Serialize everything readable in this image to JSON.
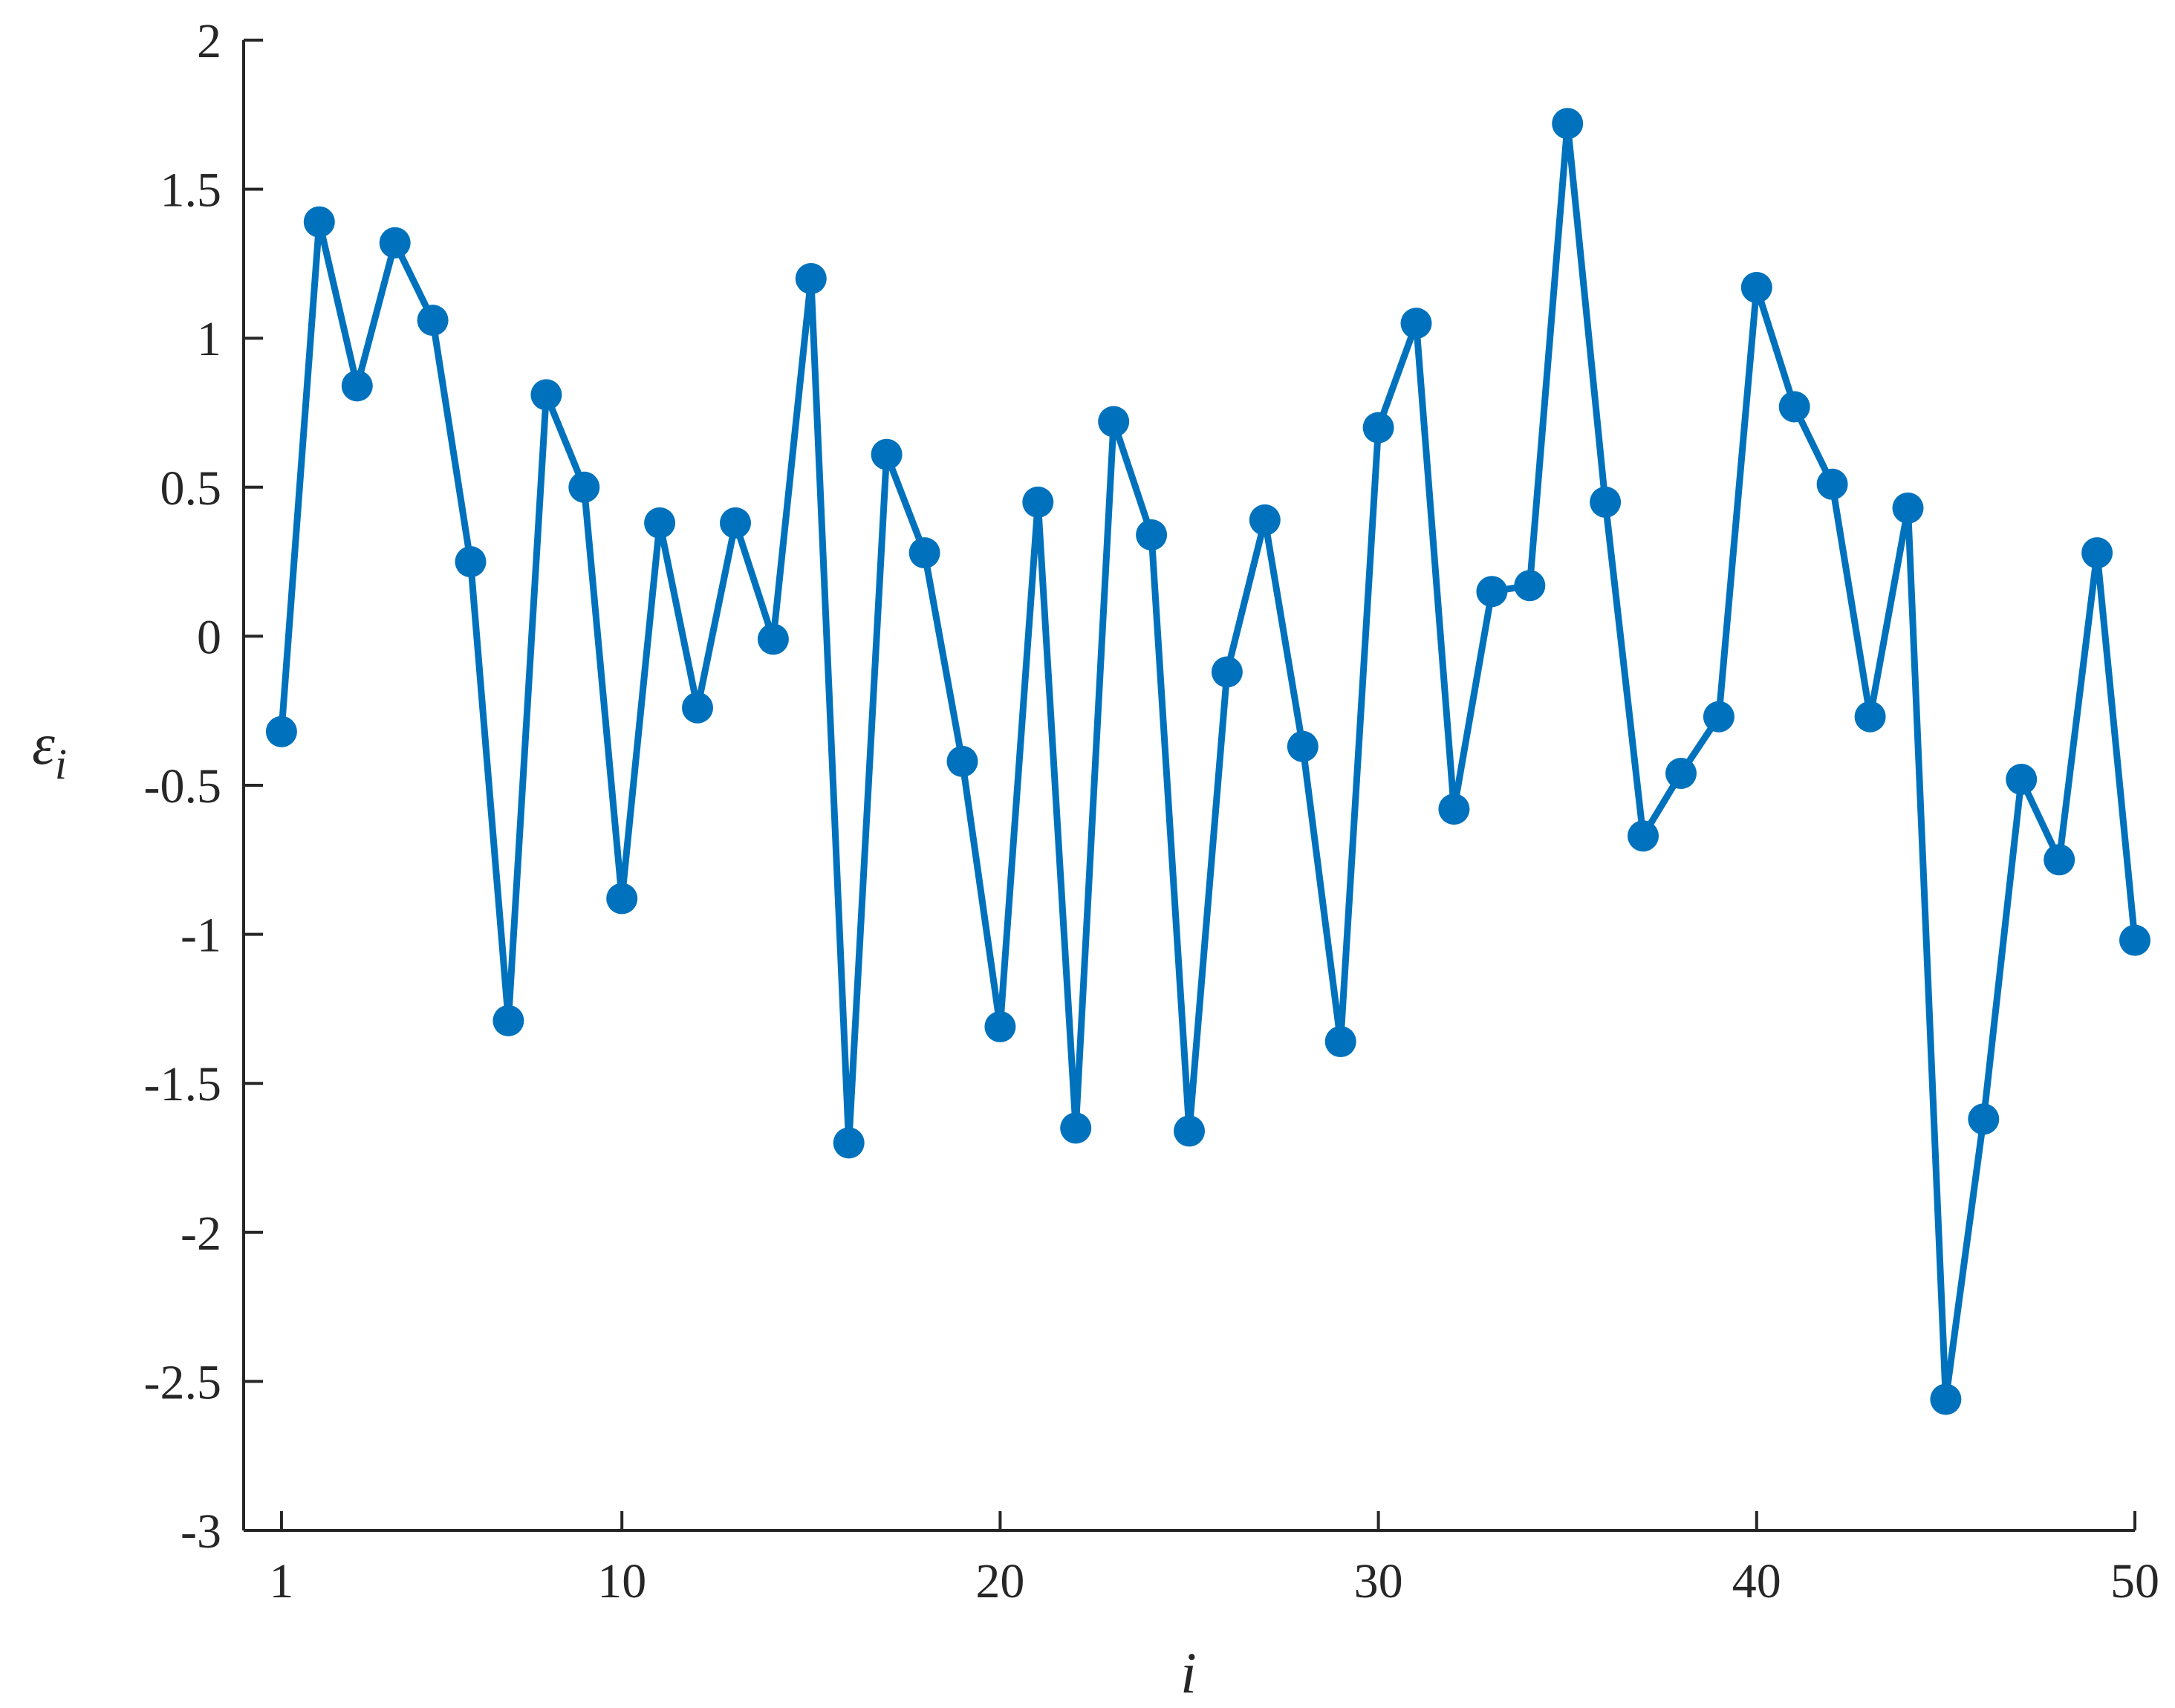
{
  "chart_data": {
    "type": "line",
    "title": "",
    "xlabel": "i",
    "ylabel": "ε",
    "ylabel_subscript": "i",
    "xlim": [
      0,
      50
    ],
    "ylim": [
      -3,
      2
    ],
    "xticks": [
      1,
      10,
      20,
      30,
      40,
      50
    ],
    "xtick_labels": [
      "1",
      "10",
      "20",
      "30",
      "40",
      "50"
    ],
    "yticks": [
      -3,
      -2.5,
      -2,
      -1.5,
      -1,
      -0.5,
      0,
      0.5,
      1,
      1.5,
      2
    ],
    "ytick_labels": [
      "-3",
      "-2.5",
      "-2",
      "-1.5",
      "-1",
      "-0.5",
      "0",
      "0.5",
      "1",
      "1.5",
      "2"
    ],
    "grid": false,
    "series": [
      {
        "color": "#0072BD",
        "marker": "circle",
        "x": [
          1,
          2,
          3,
          4,
          5,
          6,
          7,
          8,
          9,
          10,
          11,
          12,
          13,
          14,
          15,
          16,
          17,
          18,
          19,
          20,
          21,
          22,
          23,
          24,
          25,
          26,
          27,
          28,
          29,
          30,
          31,
          32,
          33,
          34,
          35,
          36,
          37,
          38,
          39,
          40,
          41,
          42,
          43,
          44,
          45,
          46,
          47,
          48,
          49,
          50
        ],
        "values": [
          -0.32,
          1.39,
          0.84,
          1.32,
          1.06,
          0.25,
          -1.29,
          0.81,
          0.5,
          -0.88,
          0.38,
          -0.24,
          0.38,
          -0.01,
          1.2,
          -1.7,
          0.61,
          0.28,
          -0.42,
          -1.31,
          0.45,
          -1.65,
          0.72,
          0.34,
          -1.66,
          -0.12,
          0.39,
          -0.37,
          -1.36,
          0.7,
          1.05,
          -0.58,
          0.15,
          0.17,
          1.72,
          0.45,
          -0.67,
          -0.46,
          -0.27,
          1.17,
          0.77,
          0.51,
          -0.27,
          0.43,
          -2.56,
          -1.62,
          -0.48,
          -0.75,
          0.28,
          -1.02
        ]
      }
    ]
  }
}
